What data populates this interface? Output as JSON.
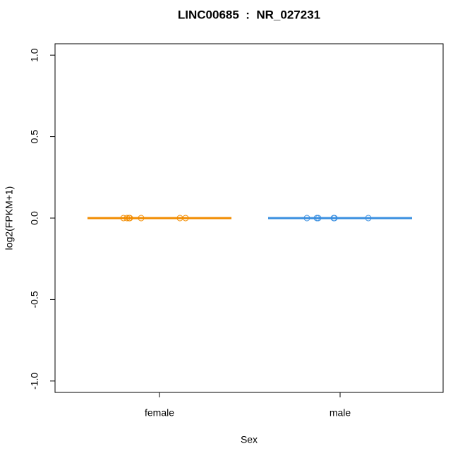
{
  "chart_data": {
    "type": "strip",
    "title": "LINC00685  :  NR_027231",
    "xlabel": "Sex",
    "ylabel": "log2(FPKM+1)",
    "categories": [
      "female",
      "male"
    ],
    "groups": [
      {
        "color": "#f28c00",
        "median": 0,
        "values": [
          0,
          0,
          0,
          0,
          0,
          0,
          0
        ]
      },
      {
        "color": "#3a8fe0",
        "median": 0,
        "values": [
          0,
          0,
          0,
          0,
          0,
          0
        ]
      }
    ],
    "ylim": [
      -1.07,
      1.07
    ],
    "yticks": [
      {
        "value": -1,
        "label": "-1.0"
      },
      {
        "value": -0.5,
        "label": "-0.5"
      },
      {
        "value": 0,
        "label": "0.0"
      },
      {
        "value": 0.5,
        "label": "0.5"
      },
      {
        "value": 1,
        "label": "1.0"
      }
    ]
  }
}
